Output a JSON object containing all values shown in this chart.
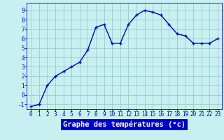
{
  "hours": [
    0,
    1,
    2,
    3,
    4,
    5,
    6,
    7,
    8,
    9,
    10,
    11,
    12,
    13,
    14,
    15,
    16,
    17,
    18,
    19,
    20,
    21,
    22,
    23
  ],
  "temps": [
    -1.2,
    -1.0,
    1.0,
    2.0,
    2.5,
    3.0,
    3.5,
    4.8,
    7.2,
    7.5,
    5.5,
    5.5,
    7.5,
    8.5,
    9.0,
    8.8,
    8.5,
    7.5,
    6.5,
    6.3,
    5.5,
    5.5,
    5.5,
    6.0
  ],
  "line_color": "#0000cc",
  "marker": "+",
  "bg_color": "#c8f0f0",
  "grid_color": "#99cccc",
  "xlabel": "Graphe des températures (°c)",
  "xlabel_color": "#ffffff",
  "xlabel_bg": "#0000cc",
  "ylim": [
    -1.5,
    9.8
  ],
  "xlim": [
    -0.5,
    23.5
  ],
  "yticks": [
    -1,
    0,
    1,
    2,
    3,
    4,
    5,
    6,
    7,
    8,
    9
  ],
  "xticks": [
    0,
    1,
    2,
    3,
    4,
    5,
    6,
    7,
    8,
    9,
    10,
    11,
    12,
    13,
    14,
    15,
    16,
    17,
    18,
    19,
    20,
    21,
    22,
    23
  ],
  "tick_fontsize": 5.5,
  "xlabel_fontsize": 7.5
}
